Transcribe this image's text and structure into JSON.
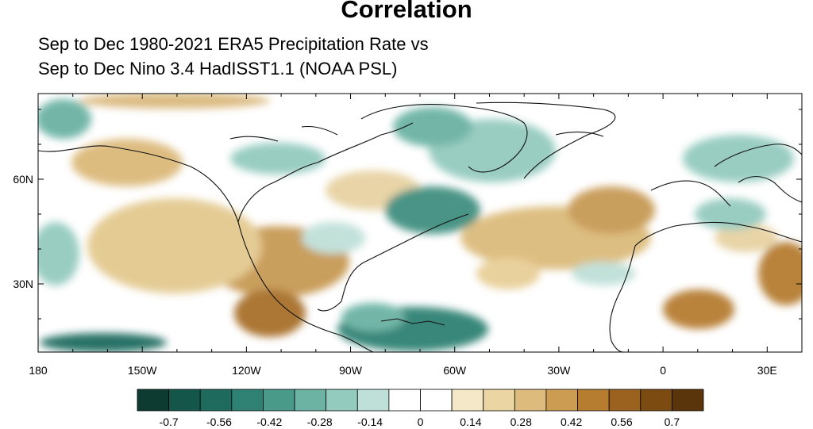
{
  "title": "Correlation",
  "subtitle_line1": "Sep to Dec 1980-2021 ERA5 Precipitation Rate vs",
  "subtitle_line2": "Sep to Dec Nino 3.4 HadISST1.1 (NOAA PSL)",
  "x_ticks": [
    {
      "lon": -180,
      "label": "180"
    },
    {
      "lon": -150,
      "label": "150W"
    },
    {
      "lon": -120,
      "label": "120W"
    },
    {
      "lon": -90,
      "label": "90W"
    },
    {
      "lon": -60,
      "label": "60W"
    },
    {
      "lon": -30,
      "label": "30W"
    },
    {
      "lon": 0,
      "label": "0"
    },
    {
      "lon": 30,
      "label": "30E"
    }
  ],
  "y_ticks": [
    {
      "lat": 60,
      "label": "60N"
    },
    {
      "lat": 30,
      "label": "30N"
    }
  ],
  "colorbar": {
    "colors": [
      "#0d3b32",
      "#15564a",
      "#1e6b5e",
      "#2f8173",
      "#4a9a8a",
      "#6cb3a4",
      "#94cbbf",
      "#bfe0d8",
      "#ffffff",
      "#ffffff",
      "#f5e8c9",
      "#ebd5a3",
      "#dcbb7c",
      "#cb9c52",
      "#b67d31",
      "#9a621e",
      "#7b4b12",
      "#5a340a"
    ],
    "labels": [
      "-0.7",
      "-0.56",
      "-0.42",
      "-0.28",
      "-0.14",
      "0",
      "0.14",
      "0.28",
      "0.42",
      "0.56",
      "0.7"
    ]
  }
}
